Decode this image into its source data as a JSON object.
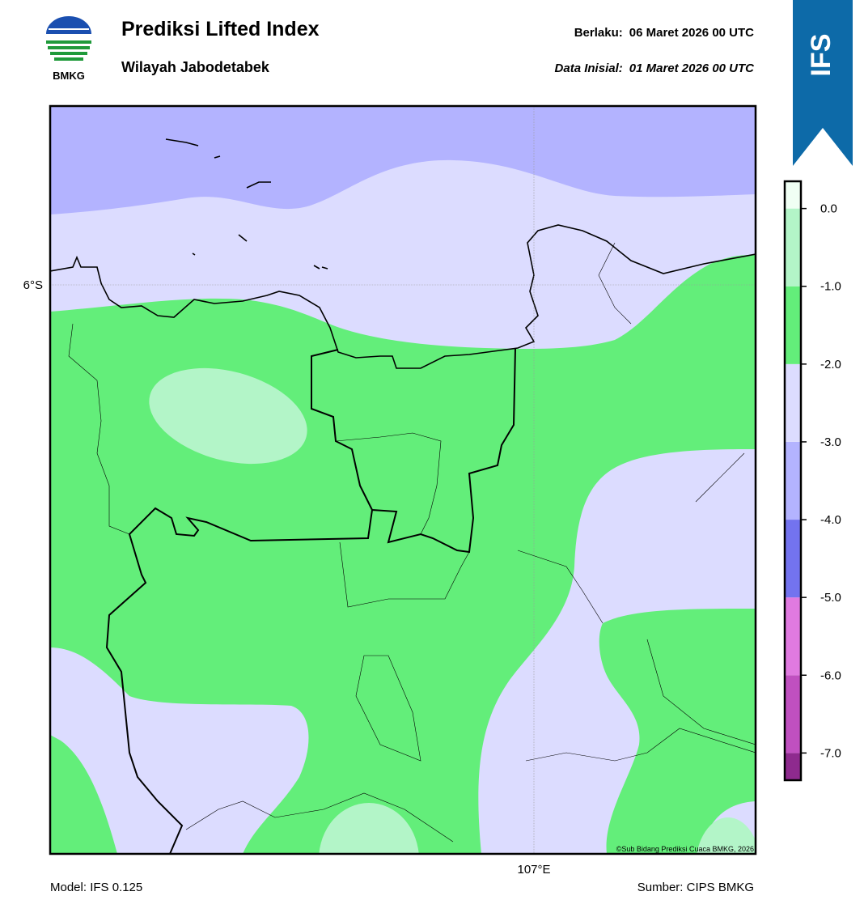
{
  "header": {
    "title": "Prediksi Lifted Index",
    "subtitle": "Wilayah Jabodetabek",
    "valid_label": "Berlaku:",
    "valid": "06 Maret 2026 00 UTC",
    "init_label": "Data Inisial:",
    "init": "01 Maret 2026 00 UTC",
    "logo": "BMKG",
    "model_badge": "IFS"
  },
  "map": {
    "lat_label": "6°S",
    "lon_label": "107°E",
    "credit": "©Sub Bidang Prediksi Cuaca BMKG, 2026"
  },
  "colorbar": {
    "range": [
      -7.35,
      0.35
    ],
    "ticks": [
      {
        "value": -7,
        "label": "-7.0"
      },
      {
        "value": -6,
        "label": "-6.0"
      },
      {
        "value": -5,
        "label": "-5.0"
      },
      {
        "value": -4,
        "label": "-4.0"
      },
      {
        "value": -3,
        "label": "-3.0"
      },
      {
        "value": -2,
        "label": "-2.0"
      },
      {
        "value": -1,
        "label": "-1.0"
      },
      {
        "value": 0,
        "label": "0.0"
      }
    ],
    "colors": [
      "#8e2a8e",
      "#c050c0",
      "#e07ae0",
      "#7373ef",
      "#b3b3ff",
      "#dcdcff",
      "#63ee7a",
      "#b3f5c8",
      "#f0fff4"
    ]
  },
  "footer": {
    "model": "Model: IFS 0.125",
    "source": "Sumber: CIPS BMKG"
  }
}
